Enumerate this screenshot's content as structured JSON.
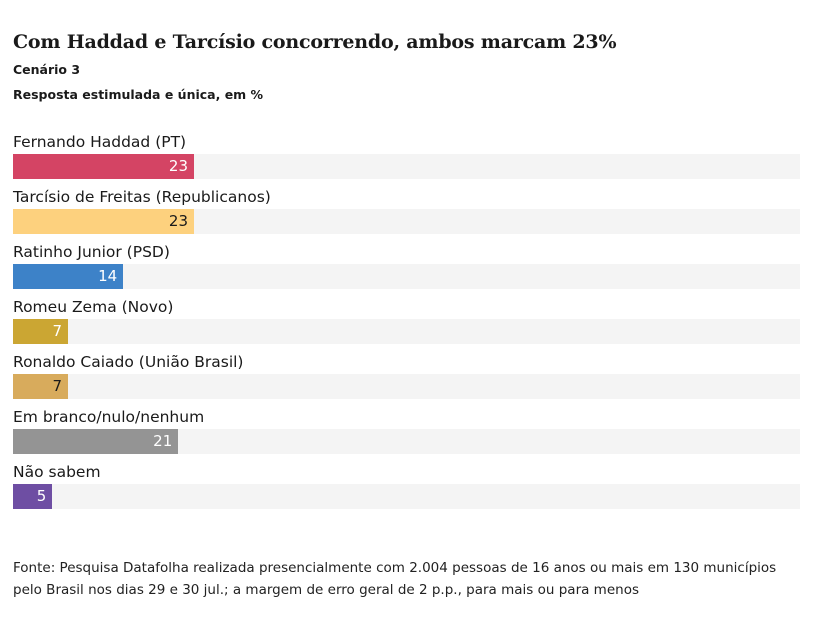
{
  "header": {
    "title": "Com Haddad e Tarcísio concorrendo, ambos marcam 23%",
    "subtitle": "Cenário 3",
    "note": "Resposta estimulada e única, em %"
  },
  "chart_data": {
    "type": "bar",
    "orientation": "horizontal",
    "categories": [
      "Fernando Haddad (PT)",
      "Tarcísio de Freitas (Republicanos)",
      "Ratinho Junior (PSD)",
      "Romeu Zema (Novo)",
      "Ronaldo Caiado (União Brasil)",
      "Em branco/nulo/nenhum",
      "Não sabem"
    ],
    "values": [
      23,
      23,
      14,
      7,
      7,
      21,
      5
    ],
    "colors": [
      "#d44464",
      "#fdd17e",
      "#3d82c8",
      "#cba633",
      "#d8ab5c",
      "#949494",
      "#6e4ea3"
    ],
    "label_colors": [
      "#ffffff",
      "#1a1a1a",
      "#ffffff",
      "#ffffff",
      "#1a1a1a",
      "#ffffff",
      "#ffffff"
    ],
    "xlim": [
      0,
      100
    ],
    "grid": false,
    "legend": "none"
  },
  "footer": {
    "source": "Fonte: Pesquisa Datafolha realizada presencialmente com 2.004 pessoas de 16 anos ou mais em 130 municípios pelo Brasil nos dias 29 e 30 jul.; a margem de erro geral de 2 p.p., para mais ou para menos"
  }
}
